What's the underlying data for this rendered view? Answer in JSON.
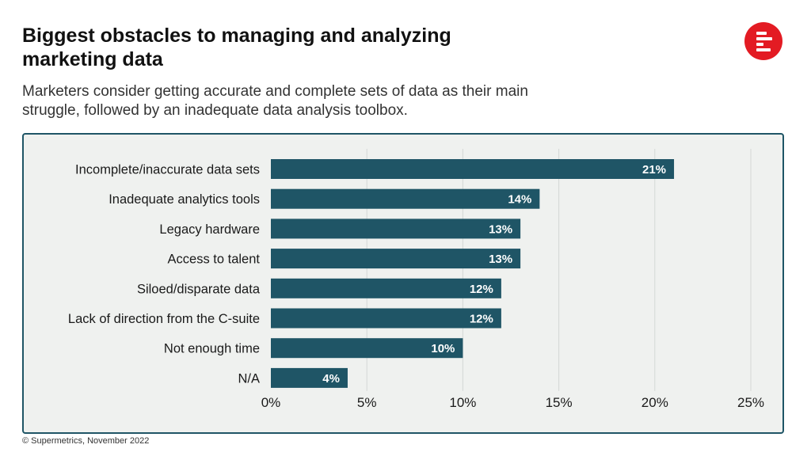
{
  "header": {
    "title": "Biggest obstacles to managing and analyzing marketing data",
    "subtitle": "Marketers consider getting accurate and complete sets of data as their main struggle, followed by an inadequate data analysis toolbox."
  },
  "footer": {
    "source": "© Supermetrics, November 2022"
  },
  "logo": {
    "icon": "supermetrics-logo-icon",
    "color": "#e31b23"
  },
  "colors": {
    "bar": "#1f5566",
    "frame_bg": "#eff1ef",
    "grid": "#d4d8d6"
  },
  "chart_data": {
    "type": "bar",
    "orientation": "horizontal",
    "categories": [
      "Incomplete/inaccurate data sets",
      "Inadequate analytics tools",
      "Legacy hardware",
      "Access to talent",
      "Siloed/disparate data",
      "Lack of direction from the C-suite",
      "Not enough time",
      "N/A"
    ],
    "values": [
      21,
      14,
      13,
      13,
      12,
      12,
      10,
      4
    ],
    "data_labels": [
      "21%",
      "14%",
      "13%",
      "13%",
      "12%",
      "12%",
      "10%",
      "4%"
    ],
    "xlim": [
      0,
      25
    ],
    "x_ticks": [
      0,
      5,
      10,
      15,
      20,
      25
    ],
    "x_tick_labels": [
      "0%",
      "5%",
      "10%",
      "15%",
      "20%",
      "25%"
    ],
    "grid": true
  }
}
